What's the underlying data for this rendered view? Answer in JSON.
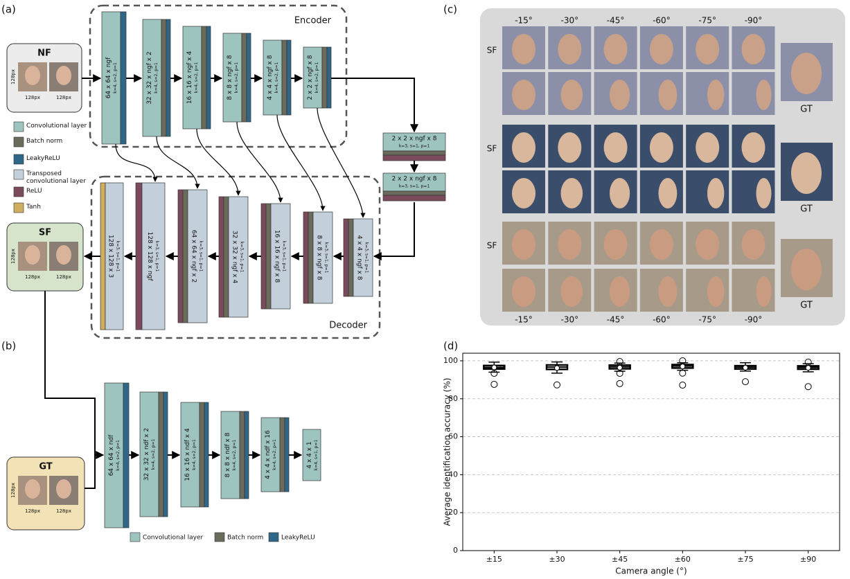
{
  "panel_labels": [
    "(a)",
    "(b)",
    "(c)",
    "(d)"
  ],
  "inputs": [
    {
      "label": "NF",
      "size": "128px"
    },
    {
      "label": "SF",
      "size": "128px"
    },
    {
      "label": "GT",
      "size": "128px"
    }
  ],
  "legend_a": [
    {
      "label": "Convolutional layer",
      "color": "#9ec4bf"
    },
    {
      "label": "Batch norm",
      "color": "#6b6b5c"
    },
    {
      "label": "LeakyReLU",
      "color": "#2f6788"
    },
    {
      "label": "Transposed convolutional layer",
      "color": "#c3cfdb"
    },
    {
      "label": "ReLU",
      "color": "#7b4b5d"
    },
    {
      "label": "Tanh",
      "color": "#cfae5f"
    }
  ],
  "encoder": {
    "title": "Encoder",
    "blocks": [
      {
        "size": "64 x 64 x ngf",
        "params": "k=4, s=2, p=1"
      },
      {
        "size": "32 x 32 x ngf x 2",
        "params": "k=4, s=2, p=1"
      },
      {
        "size": "16 x 16 x ngf x 4",
        "params": "k=4, s=2, p=1"
      },
      {
        "size": "8 x 8 x ngf x 8",
        "params": "k=4, s=2, p=1"
      },
      {
        "size": "4 x 4 x ngf x 8",
        "params": "k=4, s=2, p=1"
      },
      {
        "size": "2 x 2 x ngf x 8",
        "params": "k=4, s=2, p=1"
      }
    ]
  },
  "bottleneck": [
    {
      "size": "2 x 2 x ngf x 8",
      "params": "k=3, s=1, p=1"
    },
    {
      "size": "2 x 2 x ngf x 8",
      "params": "k=3, s=1, p=1"
    }
  ],
  "decoder": {
    "title": "Decoder",
    "blocks": [
      {
        "size": "128 x 128 x 3",
        "params": "k=3, s=1, p=1"
      },
      {
        "size": "128 x 128 x ngf",
        "params": "k=3, s=1, p=1"
      },
      {
        "size": "64 x 64 x ngf x 2",
        "params": "k=3, s=1, p=1"
      },
      {
        "size": "32 x 32 x ngf x 4",
        "params": "k=3, s=1, p=1"
      },
      {
        "size": "16 x 16 x ngf x 8",
        "params": "k=3, s=1, p=1"
      },
      {
        "size": "8 x 8 x ngf x 8",
        "params": "k=3, s=1, p=1"
      },
      {
        "size": "4 x 4 x ngf x 8",
        "params": "k=3, s=1, p=1"
      }
    ]
  },
  "discriminator": {
    "blocks": [
      {
        "size": "64 x 64 x ndf",
        "params": "k=4, s=2, p=1"
      },
      {
        "size": "32 x 32 x ndf x 2",
        "params": "k=4, s=2, p=1"
      },
      {
        "size": "16 x 16 x ndf x 4",
        "params": "k=4, s=2, p=1"
      },
      {
        "size": "8 x 8 x ndf x 8",
        "params": "k=4, s=2, p=1"
      },
      {
        "size": "4 x 4 x ndf x 16",
        "params": "k=4, s=2, p=1"
      },
      {
        "size": "4 x 4 x 1",
        "params": "k=4, s=1, p=1"
      }
    ],
    "legend": [
      {
        "label": "Convolutional layer",
        "color": "#9ec4bf"
      },
      {
        "label": "Batch norm",
        "color": "#6b6b5c"
      },
      {
        "label": "LeakyReLU",
        "color": "#2f6788"
      }
    ]
  },
  "faces": {
    "angles_top": [
      "-15°",
      "-30°",
      "-45°",
      "-60°",
      "-75°",
      "-90°"
    ],
    "angles_bottom": [
      "-15°",
      "-30°",
      "-45°",
      "-60°",
      "-75°",
      "-90°"
    ],
    "subjects": [
      {
        "row_label": "SF",
        "gt_label": "GT"
      },
      {
        "row_label": "SF",
        "gt_label": "GT"
      },
      {
        "row_label": "SF",
        "gt_label": "GT"
      }
    ]
  },
  "chart_data": {
    "type": "box",
    "ylabel": "Average identification accuracy (%)",
    "xlabel": "Camera angle (°)",
    "categories": [
      "±15",
      "±30",
      "±45",
      "±60",
      "±75",
      "±90"
    ],
    "boxes": [
      {
        "min": 94,
        "q1": 95.7,
        "median": 96.5,
        "q3": 97.5,
        "max": 99.3,
        "mean": 96.5,
        "outliers": [
          87.6,
          93.4
        ]
      },
      {
        "min": 93.5,
        "q1": 95.5,
        "median": 96.7,
        "q3": 97.8,
        "max": 99.4,
        "mean": 96.2,
        "outliers": [
          87.3
        ]
      },
      {
        "min": 94.5,
        "q1": 95.8,
        "median": 96.8,
        "q3": 97.7,
        "max": 98.8,
        "mean": 96.4,
        "outliers": [
          99.6,
          93.4,
          88
        ]
      },
      {
        "min": 95,
        "q1": 96.2,
        "median": 97.2,
        "q3": 98,
        "max": 99,
        "mean": 97,
        "outliers": [
          100,
          93.5,
          87.2
        ]
      },
      {
        "min": 94.6,
        "q1": 95.7,
        "median": 96.6,
        "q3": 97.4,
        "max": 99,
        "mean": 96.4,
        "outliers": [
          89
        ]
      },
      {
        "min": 94.2,
        "q1": 95.6,
        "median": 96.5,
        "q3": 97.3,
        "max": 98.5,
        "mean": 96.3,
        "outliers": [
          99.3,
          86.4
        ]
      }
    ],
    "ylim": [
      0,
      104
    ],
    "yticks": [
      0,
      20,
      40,
      60,
      80,
      100
    ],
    "grid": true,
    "color": "#000000"
  }
}
